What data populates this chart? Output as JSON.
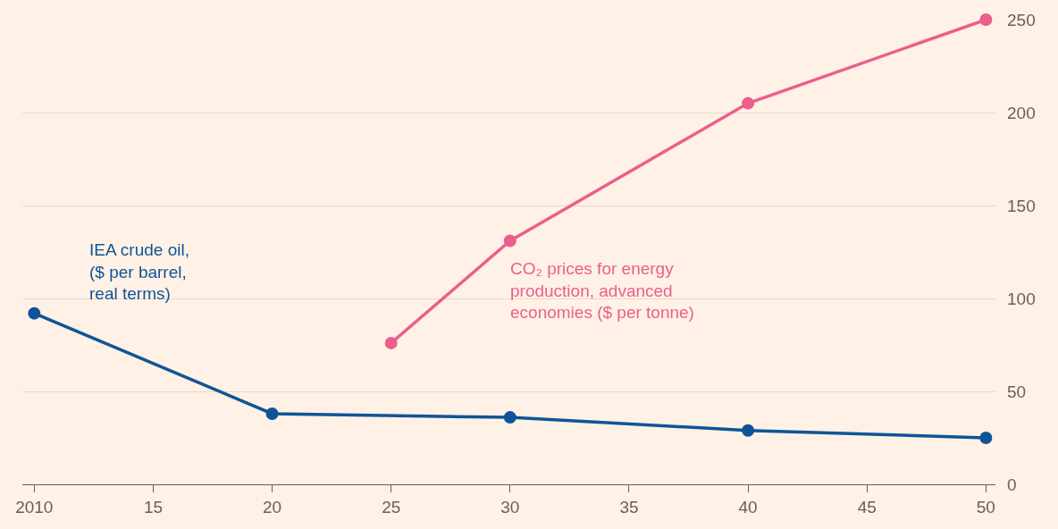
{
  "chart_data": {
    "type": "line",
    "x": [
      2010,
      2020,
      2030,
      2040,
      2050
    ],
    "series": [
      {
        "name": "IEA crude oil,\n($ per barrel,\nreal terms)",
        "color": "#0f5499",
        "values": [
          92,
          38,
          36,
          29,
          25
        ]
      },
      {
        "name": "CO₂ prices for energy\nproduction, advanced\neconomies ($ per tonne)",
        "color": "#eb5e8d",
        "values": [
          76,
          131,
          205,
          250
        ],
        "x": [
          2025,
          2030,
          2040,
          2050
        ]
      }
    ],
    "xlim": [
      2009.5,
      2050.4
    ],
    "xticks": [
      2010,
      {
        "value": 2015,
        "label": "15"
      },
      {
        "value": 2020,
        "label": "20"
      },
      {
        "value": 2025,
        "label": "25"
      },
      {
        "value": 2030,
        "label": "30"
      },
      {
        "value": 2035,
        "label": "35"
      },
      {
        "value": 2040,
        "label": "40"
      },
      {
        "value": 2045,
        "label": "45"
      },
      {
        "value": 2050,
        "label": "50"
      }
    ],
    "ylim": [
      0,
      250
    ],
    "yticks": [
      0,
      50,
      100,
      150,
      200,
      250
    ],
    "grid": "y",
    "marker": "circle",
    "legend": false
  }
}
